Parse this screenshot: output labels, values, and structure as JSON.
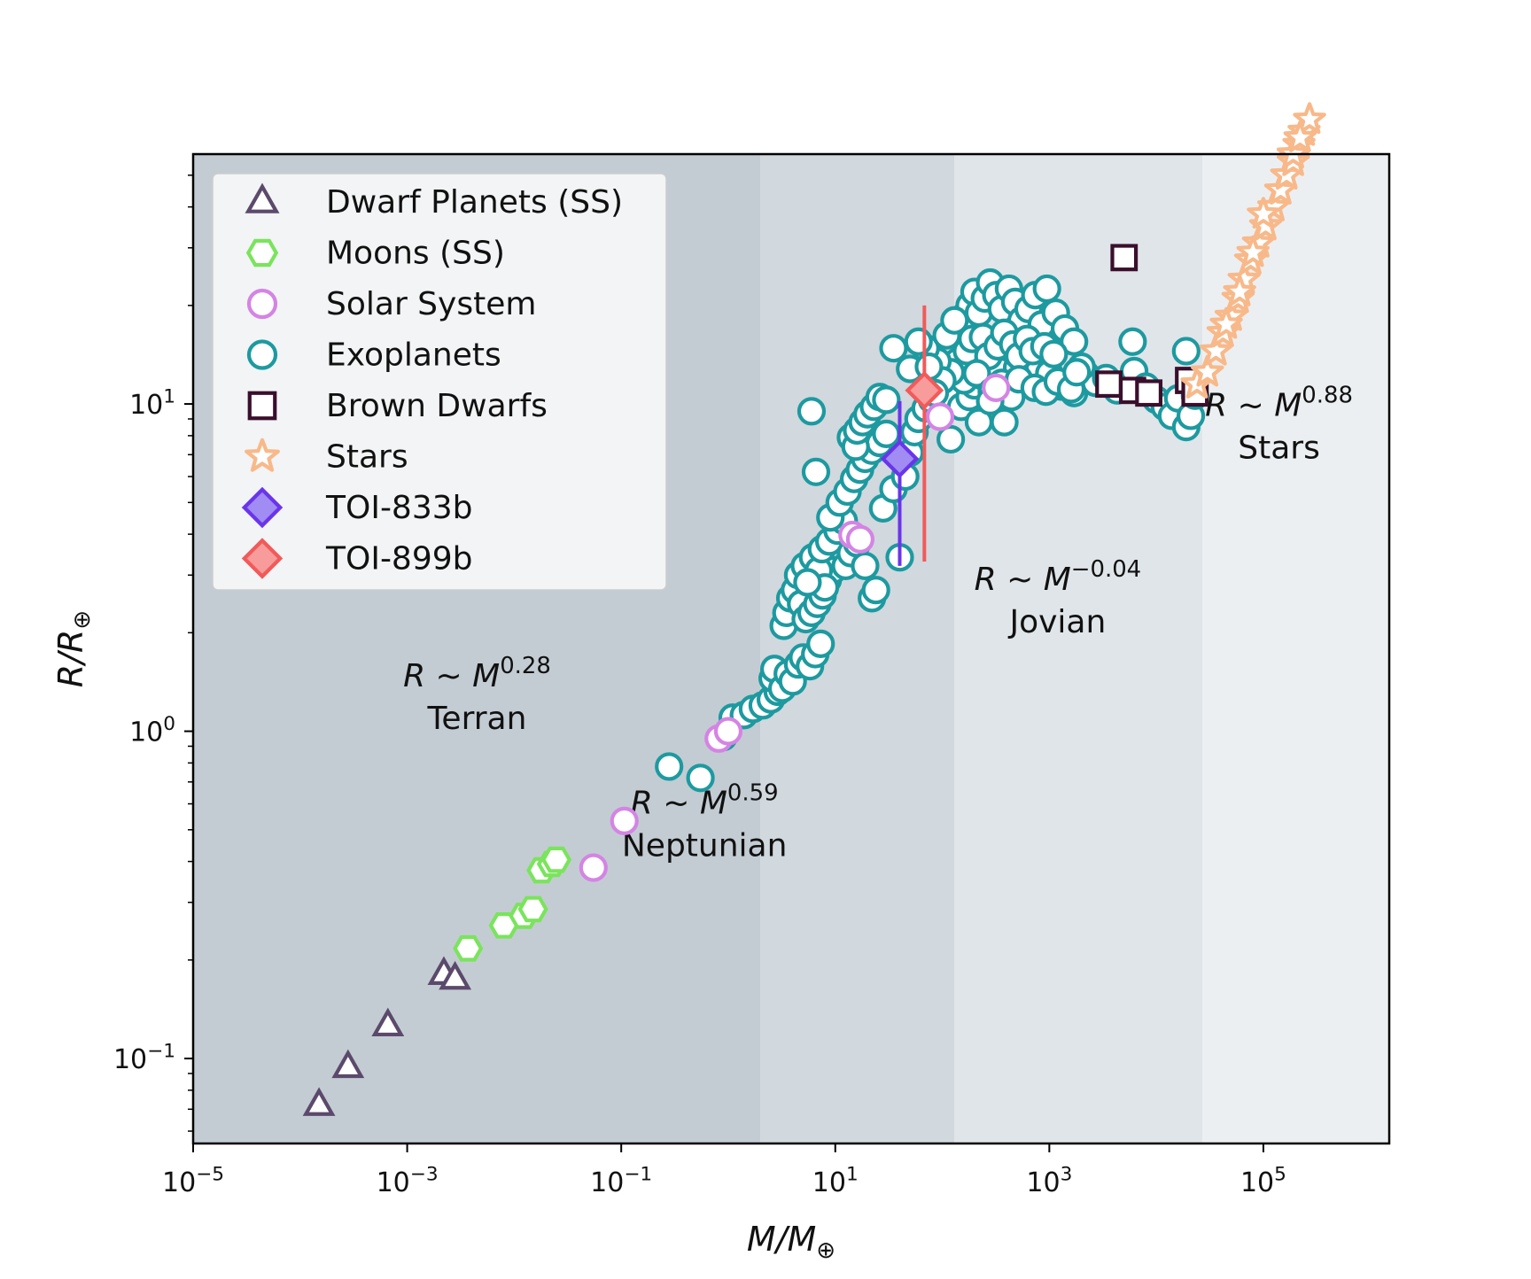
{
  "chart_data": {
    "type": "scatter",
    "x_scale": "log",
    "y_scale": "log",
    "xlim": [
      1e-05,
      1500000
    ],
    "ylim": [
      0.055,
      58
    ],
    "xlabel_main": "M/M",
    "xlabel_sub": "⊕",
    "ylabel_main": "R/R",
    "ylabel_sub": "⊕",
    "x_ticks": [
      {
        "value": 1e-05,
        "base": "10",
        "exp": "−5"
      },
      {
        "value": 0.001,
        "base": "10",
        "exp": "−3"
      },
      {
        "value": 0.1,
        "base": "10",
        "exp": "−1"
      },
      {
        "value": 10,
        "base": "10",
        "exp": "1"
      },
      {
        "value": 1000,
        "base": "10",
        "exp": "3"
      },
      {
        "value": 100000,
        "base": "10",
        "exp": "5"
      }
    ],
    "y_ticks": [
      {
        "value": 0.1,
        "base": "10",
        "exp": "−1"
      },
      {
        "value": 1,
        "base": "10",
        "exp": "0"
      },
      {
        "value": 10,
        "base": "10",
        "exp": "1"
      }
    ],
    "regions": [
      {
        "name": "Terran",
        "x_from": 1e-05,
        "x_to": 2.0,
        "color": "#c3ccd3"
      },
      {
        "name": "Neptunian",
        "x_from": 2.0,
        "x_to": 130,
        "color": "#d1d8de"
      },
      {
        "name": "Jovian",
        "x_from": 130,
        "x_to": 27000,
        "color": "#e0e5e9"
      },
      {
        "name": "Stars",
        "x_from": 27000,
        "x_to": 1500000,
        "color": "#eceff2"
      }
    ],
    "annotations": [
      {
        "formula_base": "R ~ M",
        "formula_exp": "0.28",
        "label": "Terran",
        "x": 0.0045,
        "y": 1.37
      },
      {
        "formula_base": "R ~ M",
        "formula_exp": "0.59",
        "label": "Neptunian",
        "x": 0.6,
        "y": 0.56
      },
      {
        "formula_base": "R ~ M",
        "formula_exp": "−0.04",
        "label": "Jovian",
        "x": 1200,
        "y": 2.7
      },
      {
        "formula_base": "R ~ M",
        "formula_exp": "0.88",
        "label": "Stars",
        "x": 140000,
        "y": 9.2
      }
    ],
    "series": [
      {
        "name": "Dwarf Planets (SS)",
        "marker": "triangle",
        "color": "#5b4a6b",
        "fill": "none",
        "points": [
          [
            0.00015,
            0.072
          ],
          [
            0.00028,
            0.094
          ],
          [
            0.00066,
            0.126
          ],
          [
            0.0022,
            0.181
          ],
          [
            0.0028,
            0.175
          ]
        ]
      },
      {
        "name": "Moons (SS)",
        "marker": "hexagon",
        "color": "#7ae45c",
        "fill": "none",
        "points": [
          [
            0.0037,
            0.217
          ],
          [
            0.008,
            0.255
          ],
          [
            0.0123,
            0.273
          ],
          [
            0.015,
            0.286
          ],
          [
            0.018,
            0.376
          ],
          [
            0.0225,
            0.393
          ],
          [
            0.0248,
            0.405
          ]
        ]
      },
      {
        "name": "Solar System",
        "marker": "circle",
        "color": "#d484e4",
        "fill": "none",
        "points": [
          [
            0.055,
            0.383
          ],
          [
            0.107,
            0.532
          ],
          [
            0.815,
            0.95
          ],
          [
            1.0,
            1.0
          ],
          [
            14.5,
            3.98
          ],
          [
            17.1,
            3.86
          ],
          [
            95.2,
            9.14
          ],
          [
            317.8,
            11.2
          ]
        ]
      },
      {
        "name": "Exoplanets",
        "marker": "circle",
        "color": "#1d9aa0",
        "fill": "none",
        "points": [
          [
            0.28,
            0.78
          ],
          [
            0.55,
            0.72
          ],
          [
            0.9,
            0.96
          ],
          [
            1.1,
            1.1
          ],
          [
            1.4,
            1.12
          ],
          [
            1.7,
            1.17
          ],
          [
            2.1,
            1.2
          ],
          [
            2.5,
            1.25
          ],
          [
            2.9,
            1.32
          ],
          [
            2.6,
            1.45
          ],
          [
            2.7,
            1.55
          ],
          [
            3.2,
            1.35
          ],
          [
            3.6,
            1.5
          ],
          [
            4.0,
            1.42
          ],
          [
            4.5,
            1.6
          ],
          [
            5.0,
            1.68
          ],
          [
            5.8,
            1.58
          ],
          [
            6.5,
            1.72
          ],
          [
            7.3,
            1.85
          ],
          [
            3.3,
            2.1
          ],
          [
            3.5,
            2.3
          ],
          [
            3.8,
            2.55
          ],
          [
            4.2,
            2.7
          ],
          [
            4.8,
            2.45
          ],
          [
            5.3,
            2.2
          ],
          [
            6.0,
            2.3
          ],
          [
            6.8,
            2.45
          ],
          [
            7.6,
            2.6
          ],
          [
            8.5,
            2.9
          ],
          [
            9.5,
            3.1
          ],
          [
            4.5,
            3.0
          ],
          [
            5.2,
            3.2
          ],
          [
            6.2,
            3.4
          ],
          [
            7.0,
            3.1
          ],
          [
            8.0,
            2.75
          ],
          [
            5.5,
            2.85
          ],
          [
            7.5,
            3.6
          ],
          [
            8.8,
            3.8
          ],
          [
            10.5,
            4.1
          ],
          [
            12.0,
            4.4
          ],
          [
            9.0,
            4.5
          ],
          [
            11.0,
            5.0
          ],
          [
            13.0,
            5.4
          ],
          [
            15.0,
            5.9
          ],
          [
            17.0,
            6.3
          ],
          [
            19.0,
            6.8
          ],
          [
            22.0,
            7.2
          ],
          [
            26.0,
            7.6
          ],
          [
            30.0,
            8.1
          ],
          [
            12.5,
            3.2
          ],
          [
            14.0,
            3.5
          ],
          [
            16.0,
            3.75
          ],
          [
            19.0,
            3.2
          ],
          [
            22.0,
            2.55
          ],
          [
            24.0,
            2.7
          ],
          [
            14.0,
            7.9
          ],
          [
            15.5,
            7.4
          ],
          [
            16.0,
            8.3
          ],
          [
            18.0,
            8.8
          ],
          [
            20.0,
            9.3
          ],
          [
            23.0,
            9.8
          ],
          [
            26.0,
            10.5
          ],
          [
            6.0,
            9.5
          ],
          [
            6.6,
            6.2
          ],
          [
            28.0,
            4.8
          ],
          [
            35.0,
            5.5
          ],
          [
            40.0,
            3.4
          ],
          [
            45.0,
            6.0
          ],
          [
            50.0,
            7.1
          ],
          [
            55.0,
            8.2
          ],
          [
            60.0,
            9.0
          ],
          [
            70.0,
            9.7
          ],
          [
            80.0,
            10.3
          ],
          [
            90.0,
            11.0
          ],
          [
            110.0,
            10.6
          ],
          [
            120.0,
            7.8
          ],
          [
            150.0,
            9.8
          ],
          [
            180.0,
            10.5
          ],
          [
            200.0,
            11.4
          ],
          [
            230.0,
            12.2
          ],
          [
            260.0,
            12.8
          ],
          [
            300.0,
            13.4
          ],
          [
            350.0,
            12.6
          ],
          [
            400.0,
            11.6
          ],
          [
            500.0,
            12.9
          ],
          [
            600.0,
            13.6
          ],
          [
            800.0,
            13.1
          ],
          [
            1000.0,
            12.4
          ],
          [
            1300.0,
            11.3
          ],
          [
            1700.0,
            10.8
          ],
          [
            2200.0,
            12.3
          ],
          [
            2700.0,
            11.6
          ],
          [
            3400.0,
            12.0
          ],
          [
            4300.0,
            11.0
          ],
          [
            5300.0,
            11.5
          ],
          [
            6200.0,
            12.6
          ],
          [
            8000.0,
            11.3
          ],
          [
            10000.0,
            10.3
          ],
          [
            12000.0,
            9.8
          ],
          [
            14000.0,
            9.2
          ],
          [
            16000.0,
            10.4
          ],
          [
            19000.0,
            8.5
          ],
          [
            21000.0,
            9.2
          ],
          [
            23000.0,
            10.6
          ],
          [
            19000.0,
            14.5
          ],
          [
            140.0,
            16.5
          ],
          [
            160.0,
            18.5
          ],
          [
            180.0,
            20.0
          ],
          [
            200.0,
            22.0
          ],
          [
            220.0,
            19.0
          ],
          [
            250.0,
            21.0
          ],
          [
            280.0,
            23.5
          ],
          [
            320.0,
            21.5
          ],
          [
            360.0,
            19.5
          ],
          [
            420.0,
            22.5
          ],
          [
            480.0,
            20.5
          ],
          [
            550.0,
            18.0
          ],
          [
            640.0,
            19.5
          ],
          [
            740.0,
            21.5
          ],
          [
            850.0,
            17.5
          ],
          [
            950.0,
            22.5
          ],
          [
            1150.0,
            19.0
          ],
          [
            1400.0,
            17.0
          ],
          [
            1700.0,
            15.5
          ],
          [
            140.0,
            13.5
          ],
          [
            170.0,
            14.5
          ],
          [
            190.0,
            15.8
          ],
          [
            240.0,
            16.0
          ],
          [
            270.0,
            14.0
          ],
          [
            330.0,
            15.0
          ],
          [
            380.0,
            16.5
          ],
          [
            460.0,
            15.2
          ],
          [
            520.0,
            14.0
          ],
          [
            620.0,
            15.8
          ],
          [
            700.0,
            14.5
          ],
          [
            900.0,
            15.0
          ],
          [
            1100.0,
            14.2
          ],
          [
            2000.0,
            13.0
          ],
          [
            160.0,
            11.8
          ],
          [
            210.0,
            12.4
          ],
          [
            290.0,
            10.9
          ],
          [
            360.0,
            11.6
          ],
          [
            440.0,
            10.5
          ],
          [
            520.0,
            11.9
          ],
          [
            730.0,
            11.2
          ],
          [
            930.0,
            10.9
          ],
          [
            1200.0,
            11.7
          ],
          [
            1600.0,
            11.1
          ],
          [
            1800.0,
            12.5
          ],
          [
            6000.0,
            15.5
          ],
          [
            220.0,
            8.8
          ],
          [
            280.0,
            10.2
          ],
          [
            380.0,
            8.8
          ],
          [
            120.0,
            12.5
          ],
          [
            90.0,
            13.5
          ],
          [
            70.0,
            14.8
          ],
          [
            110.0,
            16.2
          ],
          [
            130.0,
            18.0
          ],
          [
            100.0,
            11.8
          ],
          [
            85.0,
            10.8
          ],
          [
            30.0,
            10.3
          ],
          [
            35.0,
            14.8
          ],
          [
            50.0,
            12.8
          ],
          [
            60.0,
            15.5
          ],
          [
            75.0,
            13.0
          ]
        ]
      },
      {
        "name": "Brown Dwarfs",
        "marker": "square",
        "color": "#3a0f2c",
        "fill": "none",
        "points": [
          [
            5000,
            28
          ],
          [
            3600,
            11.5
          ],
          [
            6000,
            11.0
          ],
          [
            8500,
            10.8
          ],
          [
            20000,
            11.8
          ],
          [
            23000,
            10.8
          ]
        ]
      },
      {
        "name": "Stars",
        "marker": "star",
        "color": "#f8b98a",
        "fill": "none",
        "points": [
          [
            24000,
            11.5
          ],
          [
            30000,
            12.5
          ],
          [
            36000,
            14.5
          ],
          [
            42000,
            16.5
          ],
          [
            50000,
            18.5
          ],
          [
            58000,
            21.0
          ],
          [
            66000,
            24.0
          ],
          [
            76000,
            27.5
          ],
          [
            90000,
            31.0
          ],
          [
            105000,
            35.0
          ],
          [
            125000,
            40.0
          ],
          [
            145000,
            45.0
          ],
          [
            165000,
            50.0
          ],
          [
            190000,
            55.0
          ],
          [
            215000,
            62.0
          ],
          [
            240000,
            68.0
          ],
          [
            270000,
            74.0
          ],
          [
            190000,
            58.0
          ],
          [
            220000,
            65.0
          ],
          [
            100000,
            38.0
          ],
          [
            80000,
            29.0
          ],
          [
            60000,
            22.0
          ],
          [
            45000,
            17.5
          ]
        ]
      },
      {
        "name": "TOI-833b",
        "marker": "diamond",
        "color": "#6a35ea",
        "fill": "#a08cf2",
        "points": [
          [
            40,
            6.8
          ]
        ],
        "error": {
          "y_low": 3.2,
          "y_high": 10.2
        }
      },
      {
        "name": "TOI-899b",
        "marker": "diamond",
        "color": "#f25a5a",
        "fill": "#f79b9b",
        "points": [
          [
            68,
            11.0
          ]
        ],
        "error": {
          "y_low": 3.3,
          "y_high": 20.0
        }
      }
    ]
  }
}
